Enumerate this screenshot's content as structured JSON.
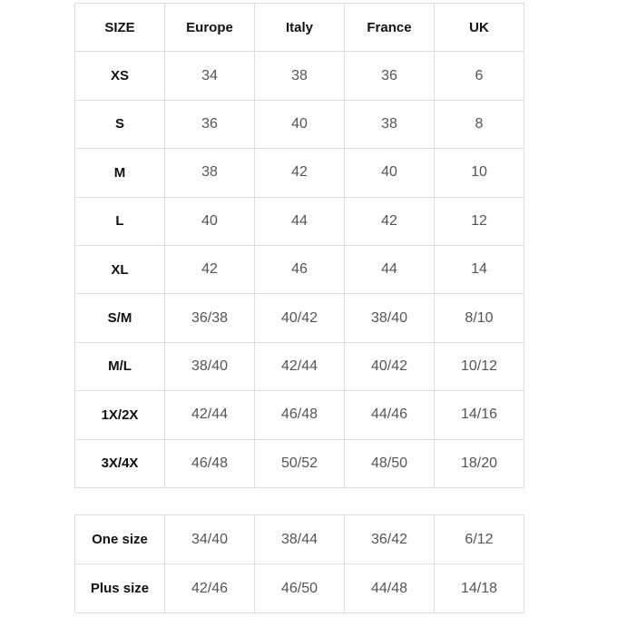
{
  "table": {
    "header": [
      "SIZE",
      "Europe",
      "Italy",
      "France",
      "UK"
    ],
    "rows": [
      [
        "XS",
        "34",
        "38",
        "36",
        "6"
      ],
      [
        "S",
        "36",
        "40",
        "38",
        "8"
      ],
      [
        "M",
        "38",
        "42",
        "40",
        "10"
      ],
      [
        "L",
        "40",
        "44",
        "42",
        "12"
      ],
      [
        "XL",
        "42",
        "46",
        "44",
        "14"
      ],
      [
        "S/M",
        "36/38",
        "40/42",
        "38/40",
        "8/10"
      ],
      [
        "M/L",
        "38/40",
        "42/44",
        "40/42",
        "10/12"
      ],
      [
        "1X/2X",
        "42/44",
        "46/48",
        "44/46",
        "14/16"
      ],
      [
        "3X/4X",
        "46/48",
        "50/52",
        "48/50",
        "18/20"
      ]
    ]
  },
  "table2": {
    "rows": [
      [
        "One size",
        "34/40",
        "38/44",
        "36/42",
        "6/12"
      ],
      [
        "Plus size",
        "42/46",
        "46/50",
        "44/48",
        "14/18"
      ]
    ]
  }
}
